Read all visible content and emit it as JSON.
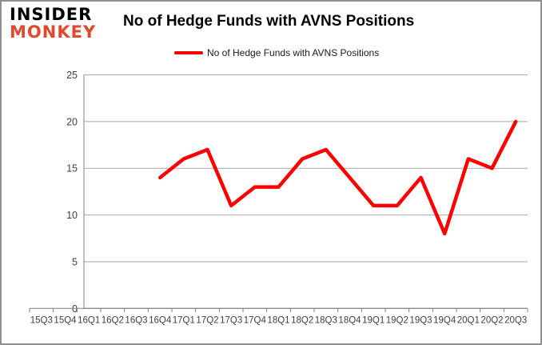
{
  "branding": {
    "logo_line1": "INSIDER",
    "logo_line2": "MONKEY",
    "logo_color_line1": "#000000",
    "logo_color_line2": "#e2492c"
  },
  "header": {
    "title": "No of Hedge Funds with AVNS Positions"
  },
  "legend": {
    "label": "No of Hedge Funds with AVNS Positions",
    "swatch_color": "#ff0000"
  },
  "chart_data": {
    "type": "line",
    "title": "No of Hedge Funds with AVNS Positions",
    "categories": [
      "15Q3",
      "15Q4",
      "16Q1",
      "16Q2",
      "16Q3",
      "16Q4",
      "17Q1",
      "17Q2",
      "17Q3",
      "17Q4",
      "18Q1",
      "18Q2",
      "18Q3",
      "18Q4",
      "19Q1",
      "19Q2",
      "19Q3",
      "19Q4",
      "20Q1",
      "20Q2",
      "20Q3"
    ],
    "series": [
      {
        "name": "No of Hedge Funds with AVNS Positions",
        "color": "#ff0000",
        "start_category": "16Q4",
        "values": [
          14,
          16,
          17,
          11,
          13,
          13,
          16,
          17,
          14,
          11,
          11,
          14,
          8,
          16,
          15,
          20
        ]
      }
    ],
    "ylim": [
      0,
      25
    ],
    "yticks": [
      0,
      5,
      10,
      15,
      20,
      25
    ],
    "grid": true,
    "legend_position": "top",
    "colors": {
      "gridline": "#a6a6a6",
      "axis": "#808080",
      "tick_label": "#3f3f3f"
    }
  }
}
